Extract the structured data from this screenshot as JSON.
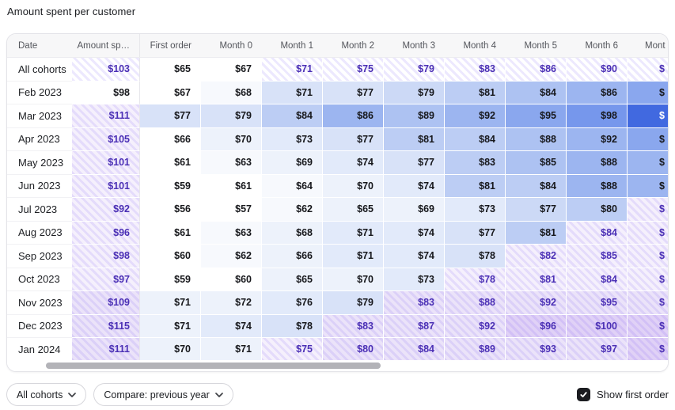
{
  "title": "Amount spent per customer",
  "colors": {
    "d": "#17181c",
    "p": "#4b30b5",
    "w": "#ffffff",
    "accent_blue_max": "#4169e0",
    "forecast_purple": "#7150f5",
    "header_bg": "#f7f7f8",
    "scroll_thumb": "#b3b3b8"
  },
  "table": {
    "headers": [
      "Date",
      "Amount sp…",
      "First order",
      "Month 0",
      "Month 1",
      "Month 2",
      "Month 3",
      "Month 4",
      "Month 5",
      "Month 6",
      "Mont"
    ],
    "rows": [
      {
        "label": "All cohorts",
        "cells": [
          {
            "t": "$103",
            "bg": "#ffffff",
            "fg": "p",
            "h": true
          },
          {
            "t": "$65",
            "bg": "#ffffff",
            "fg": "d"
          },
          {
            "t": "$67",
            "bg": "#ffffff",
            "fg": "d"
          },
          {
            "t": "$71",
            "bg": "#ffffff",
            "fg": "p",
            "h": true
          },
          {
            "t": "$75",
            "bg": "#ffffff",
            "fg": "p",
            "h": true
          },
          {
            "t": "$79",
            "bg": "#ffffff",
            "fg": "p",
            "h": true
          },
          {
            "t": "$83",
            "bg": "#ffffff",
            "fg": "p",
            "h": true
          },
          {
            "t": "$86",
            "bg": "#ffffff",
            "fg": "p",
            "h": true
          },
          {
            "t": "$90",
            "bg": "#ffffff",
            "fg": "p",
            "h": true
          },
          {
            "t": "$",
            "bg": "#ffffff",
            "fg": "p",
            "h": true
          }
        ]
      },
      {
        "label": "Feb 2023",
        "cells": [
          {
            "t": "$98",
            "bg": "#ffffff",
            "fg": "d"
          },
          {
            "t": "$67",
            "bg": "#ffffff",
            "fg": "d"
          },
          {
            "t": "$68",
            "bg": "#f7f9fd",
            "fg": "d"
          },
          {
            "t": "$71",
            "bg": "#d8e2f8",
            "fg": "d"
          },
          {
            "t": "$77",
            "bg": "#d8e2f8",
            "fg": "d"
          },
          {
            "t": "$79",
            "bg": "#ccd9f6",
            "fg": "d"
          },
          {
            "t": "$81",
            "bg": "#bccdf4",
            "fg": "d"
          },
          {
            "t": "$84",
            "bg": "#adc2f2",
            "fg": "d"
          },
          {
            "t": "$86",
            "bg": "#9cb5f0",
            "fg": "d"
          },
          {
            "t": "$",
            "bg": "#8aa7ee",
            "fg": "d"
          }
        ]
      },
      {
        "label": "Mar 2023",
        "cells": [
          {
            "t": "$111",
            "bg": "#f5f0fc",
            "fg": "p",
            "h": true
          },
          {
            "t": "$77",
            "bg": "#d8e2f8",
            "fg": "d"
          },
          {
            "t": "$79",
            "bg": "#d8e2f8",
            "fg": "d"
          },
          {
            "t": "$84",
            "bg": "#bccdf4",
            "fg": "d"
          },
          {
            "t": "$86",
            "bg": "#9cb5f0",
            "fg": "d"
          },
          {
            "t": "$89",
            "bg": "#adc2f2",
            "fg": "d"
          },
          {
            "t": "$92",
            "bg": "#9cb5f0",
            "fg": "d"
          },
          {
            "t": "$95",
            "bg": "#8aa7ee",
            "fg": "d"
          },
          {
            "t": "$98",
            "bg": "#7697ec",
            "fg": "d"
          },
          {
            "t": "$",
            "bg": "#4169e0",
            "fg": "w"
          }
        ]
      },
      {
        "label": "Apr 2023",
        "cells": [
          {
            "t": "$105",
            "bg": "#f5f0fc",
            "fg": "p",
            "h": true
          },
          {
            "t": "$66",
            "bg": "#ffffff",
            "fg": "d"
          },
          {
            "t": "$70",
            "bg": "#edf2fb",
            "fg": "d"
          },
          {
            "t": "$73",
            "bg": "#e2eafa",
            "fg": "d"
          },
          {
            "t": "$77",
            "bg": "#d8e2f8",
            "fg": "d"
          },
          {
            "t": "$81",
            "bg": "#bccdf4",
            "fg": "d"
          },
          {
            "t": "$84",
            "bg": "#bccdf4",
            "fg": "d"
          },
          {
            "t": "$88",
            "bg": "#adc2f2",
            "fg": "d"
          },
          {
            "t": "$92",
            "bg": "#9cb5f0",
            "fg": "d"
          },
          {
            "t": "$",
            "bg": "#8aa7ee",
            "fg": "d"
          }
        ]
      },
      {
        "label": "May 2023",
        "cells": [
          {
            "t": "$101",
            "bg": "#f5f0fc",
            "fg": "p",
            "h": true
          },
          {
            "t": "$61",
            "bg": "#ffffff",
            "fg": "d"
          },
          {
            "t": "$63",
            "bg": "#f7f9fd",
            "fg": "d"
          },
          {
            "t": "$69",
            "bg": "#edf2fb",
            "fg": "d"
          },
          {
            "t": "$74",
            "bg": "#e2eafa",
            "fg": "d"
          },
          {
            "t": "$77",
            "bg": "#d8e2f8",
            "fg": "d"
          },
          {
            "t": "$83",
            "bg": "#bccdf4",
            "fg": "d"
          },
          {
            "t": "$85",
            "bg": "#adc2f2",
            "fg": "d"
          },
          {
            "t": "$88",
            "bg": "#9cb5f0",
            "fg": "d"
          },
          {
            "t": "$",
            "bg": "#9cb5f0",
            "fg": "d"
          }
        ]
      },
      {
        "label": "Jun 2023",
        "cells": [
          {
            "t": "$101",
            "bg": "#f5f0fc",
            "fg": "p",
            "h": true
          },
          {
            "t": "$59",
            "bg": "#ffffff",
            "fg": "d"
          },
          {
            "t": "$61",
            "bg": "#ffffff",
            "fg": "d"
          },
          {
            "t": "$64",
            "bg": "#f7f9fd",
            "fg": "d"
          },
          {
            "t": "$70",
            "bg": "#edf2fb",
            "fg": "d"
          },
          {
            "t": "$74",
            "bg": "#e2eafa",
            "fg": "d"
          },
          {
            "t": "$81",
            "bg": "#bccdf4",
            "fg": "d"
          },
          {
            "t": "$84",
            "bg": "#bccdf4",
            "fg": "d"
          },
          {
            "t": "$88",
            "bg": "#9cb5f0",
            "fg": "d"
          },
          {
            "t": "$",
            "bg": "#9cb5f0",
            "fg": "d"
          }
        ]
      },
      {
        "label": "Jul 2023",
        "cells": [
          {
            "t": "$92",
            "bg": "#f5f0fc",
            "fg": "p",
            "h": true
          },
          {
            "t": "$56",
            "bg": "#ffffff",
            "fg": "d"
          },
          {
            "t": "$57",
            "bg": "#ffffff",
            "fg": "d"
          },
          {
            "t": "$62",
            "bg": "#f7f9fd",
            "fg": "d"
          },
          {
            "t": "$65",
            "bg": "#edf2fb",
            "fg": "d"
          },
          {
            "t": "$69",
            "bg": "#edf2fb",
            "fg": "d"
          },
          {
            "t": "$73",
            "bg": "#e2eafa",
            "fg": "d"
          },
          {
            "t": "$77",
            "bg": "#ccd9f6",
            "fg": "d"
          },
          {
            "t": "$80",
            "bg": "#bccdf4",
            "fg": "d"
          },
          {
            "t": "$",
            "bg": "#f5f0fc",
            "fg": "p",
            "h": true
          }
        ]
      },
      {
        "label": "Aug 2023",
        "cells": [
          {
            "t": "$96",
            "bg": "#f5f0fc",
            "fg": "p",
            "h": true
          },
          {
            "t": "$61",
            "bg": "#ffffff",
            "fg": "d"
          },
          {
            "t": "$63",
            "bg": "#f7f9fd",
            "fg": "d"
          },
          {
            "t": "$68",
            "bg": "#edf2fb",
            "fg": "d"
          },
          {
            "t": "$71",
            "bg": "#e2eafa",
            "fg": "d"
          },
          {
            "t": "$74",
            "bg": "#e2eafa",
            "fg": "d"
          },
          {
            "t": "$77",
            "bg": "#d8e2f8",
            "fg": "d"
          },
          {
            "t": "$81",
            "bg": "#bccdf4",
            "fg": "d"
          },
          {
            "t": "$84",
            "bg": "#f5f0fc",
            "fg": "p",
            "h": true
          },
          {
            "t": "$",
            "bg": "#f5f0fc",
            "fg": "p",
            "h": true
          }
        ]
      },
      {
        "label": "Sep 2023",
        "cells": [
          {
            "t": "$98",
            "bg": "#f5f0fc",
            "fg": "p",
            "h": true
          },
          {
            "t": "$60",
            "bg": "#ffffff",
            "fg": "d"
          },
          {
            "t": "$62",
            "bg": "#f7f9fd",
            "fg": "d"
          },
          {
            "t": "$66",
            "bg": "#edf2fb",
            "fg": "d"
          },
          {
            "t": "$71",
            "bg": "#e2eafa",
            "fg": "d"
          },
          {
            "t": "$74",
            "bg": "#e2eafa",
            "fg": "d"
          },
          {
            "t": "$78",
            "bg": "#d8e2f8",
            "fg": "d"
          },
          {
            "t": "$82",
            "bg": "#f5f0fc",
            "fg": "p",
            "h": true
          },
          {
            "t": "$85",
            "bg": "#f5f0fc",
            "fg": "p",
            "h": true
          },
          {
            "t": "$",
            "bg": "#f5f0fc",
            "fg": "p",
            "h": true
          }
        ]
      },
      {
        "label": "Oct 2023",
        "cells": [
          {
            "t": "$97",
            "bg": "#f5f0fc",
            "fg": "p",
            "h": true
          },
          {
            "t": "$59",
            "bg": "#ffffff",
            "fg": "d"
          },
          {
            "t": "$60",
            "bg": "#ffffff",
            "fg": "d"
          },
          {
            "t": "$65",
            "bg": "#edf2fb",
            "fg": "d"
          },
          {
            "t": "$70",
            "bg": "#edf2fb",
            "fg": "d"
          },
          {
            "t": "$73",
            "bg": "#e2eafa",
            "fg": "d"
          },
          {
            "t": "$78",
            "bg": "#f5f0fc",
            "fg": "p",
            "h": true
          },
          {
            "t": "$81",
            "bg": "#f5f0fc",
            "fg": "p",
            "h": true
          },
          {
            "t": "$84",
            "bg": "#f5f0fc",
            "fg": "p",
            "h": true
          },
          {
            "t": "$",
            "bg": "#f5f0fc",
            "fg": "p",
            "h": true
          }
        ]
      },
      {
        "label": "Nov 2023",
        "cells": [
          {
            "t": "$109",
            "bg": "#ebe3f9",
            "fg": "p",
            "h": true
          },
          {
            "t": "$71",
            "bg": "#edf2fb",
            "fg": "d"
          },
          {
            "t": "$72",
            "bg": "#edf2fb",
            "fg": "d"
          },
          {
            "t": "$76",
            "bg": "#e2eafa",
            "fg": "d"
          },
          {
            "t": "$79",
            "bg": "#d8e2f8",
            "fg": "d"
          },
          {
            "t": "$83",
            "bg": "#ebe3f9",
            "fg": "p",
            "h": true
          },
          {
            "t": "$88",
            "bg": "#ebe3f9",
            "fg": "p",
            "h": true
          },
          {
            "t": "$92",
            "bg": "#ebe3f9",
            "fg": "p",
            "h": true
          },
          {
            "t": "$95",
            "bg": "#ebe3f9",
            "fg": "p",
            "h": true
          },
          {
            "t": "$",
            "bg": "#ebe3f9",
            "fg": "p",
            "h": true
          }
        ]
      },
      {
        "label": "Dec 2023",
        "cells": [
          {
            "t": "$115",
            "bg": "#ebe3f9",
            "fg": "p",
            "h": true
          },
          {
            "t": "$71",
            "bg": "#edf2fb",
            "fg": "d"
          },
          {
            "t": "$74",
            "bg": "#e2eafa",
            "fg": "d"
          },
          {
            "t": "$78",
            "bg": "#d8e2f8",
            "fg": "d"
          },
          {
            "t": "$83",
            "bg": "#ebe3f9",
            "fg": "p",
            "h": true
          },
          {
            "t": "$87",
            "bg": "#ebe3f9",
            "fg": "p",
            "h": true
          },
          {
            "t": "$92",
            "bg": "#ebe3f9",
            "fg": "p",
            "h": true
          },
          {
            "t": "$96",
            "bg": "#e0d1f6",
            "fg": "p",
            "h": true
          },
          {
            "t": "$100",
            "bg": "#e0d1f6",
            "fg": "p",
            "h": true
          },
          {
            "t": "$",
            "bg": "#e0d1f6",
            "fg": "p",
            "h": true
          }
        ]
      },
      {
        "label": "Jan 2024",
        "cells": [
          {
            "t": "$111",
            "bg": "#ebe3f9",
            "fg": "p",
            "h": true
          },
          {
            "t": "$70",
            "bg": "#edf2fb",
            "fg": "d"
          },
          {
            "t": "$71",
            "bg": "#edf2fb",
            "fg": "d"
          },
          {
            "t": "$75",
            "bg": "#f5f0fc",
            "fg": "p",
            "h": true
          },
          {
            "t": "$80",
            "bg": "#ebe3f9",
            "fg": "p",
            "h": true
          },
          {
            "t": "$84",
            "bg": "#ebe3f9",
            "fg": "p",
            "h": true
          },
          {
            "t": "$89",
            "bg": "#ebe3f9",
            "fg": "p",
            "h": true
          },
          {
            "t": "$93",
            "bg": "#ebe3f9",
            "fg": "p",
            "h": true
          },
          {
            "t": "$97",
            "bg": "#ebe3f9",
            "fg": "p",
            "h": true
          },
          {
            "t": "$",
            "bg": "#e0d1f6",
            "fg": "p",
            "h": true
          }
        ]
      }
    ]
  },
  "controls": {
    "cohort_filter": "All cohorts",
    "compare_filter": "Compare: previous year",
    "show_first_order": "Show first order",
    "show_first_order_checked": true
  },
  "chart_data": {
    "type": "heatmap",
    "title": "Amount spent per customer",
    "columns": [
      "Amount spent",
      "First order",
      "Month 0",
      "Month 1",
      "Month 2",
      "Month 3",
      "Month 4",
      "Month 5",
      "Month 6"
    ],
    "row_labels": [
      "All cohorts",
      "Feb 2023",
      "Mar 2023",
      "Apr 2023",
      "May 2023",
      "Jun 2023",
      "Jul 2023",
      "Aug 2023",
      "Sep 2023",
      "Oct 2023",
      "Nov 2023",
      "Dec 2023",
      "Jan 2024"
    ],
    "values": [
      [
        103,
        65,
        67,
        71,
        75,
        79,
        83,
        86,
        90
      ],
      [
        98,
        67,
        68,
        71,
        77,
        79,
        81,
        84,
        86
      ],
      [
        111,
        77,
        79,
        84,
        86,
        89,
        92,
        95,
        98
      ],
      [
        105,
        66,
        70,
        73,
        77,
        81,
        84,
        88,
        92
      ],
      [
        101,
        61,
        63,
        69,
        74,
        77,
        83,
        85,
        88
      ],
      [
        101,
        59,
        61,
        64,
        70,
        74,
        81,
        84,
        88
      ],
      [
        92,
        56,
        57,
        62,
        65,
        69,
        73,
        77,
        80
      ],
      [
        96,
        61,
        63,
        68,
        71,
        74,
        77,
        81,
        84
      ],
      [
        98,
        60,
        62,
        66,
        71,
        74,
        78,
        82,
        85
      ],
      [
        97,
        59,
        60,
        65,
        70,
        73,
        78,
        81,
        84
      ],
      [
        109,
        71,
        72,
        76,
        79,
        83,
        88,
        92,
        95
      ],
      [
        115,
        71,
        74,
        78,
        83,
        87,
        92,
        96,
        100
      ],
      [
        111,
        70,
        71,
        75,
        80,
        84,
        89,
        93,
        97
      ]
    ],
    "notes": "Hatched purple cells are forecast values; blue intensity scales with spend; Month 7 column clipped at right edge showing only $"
  }
}
